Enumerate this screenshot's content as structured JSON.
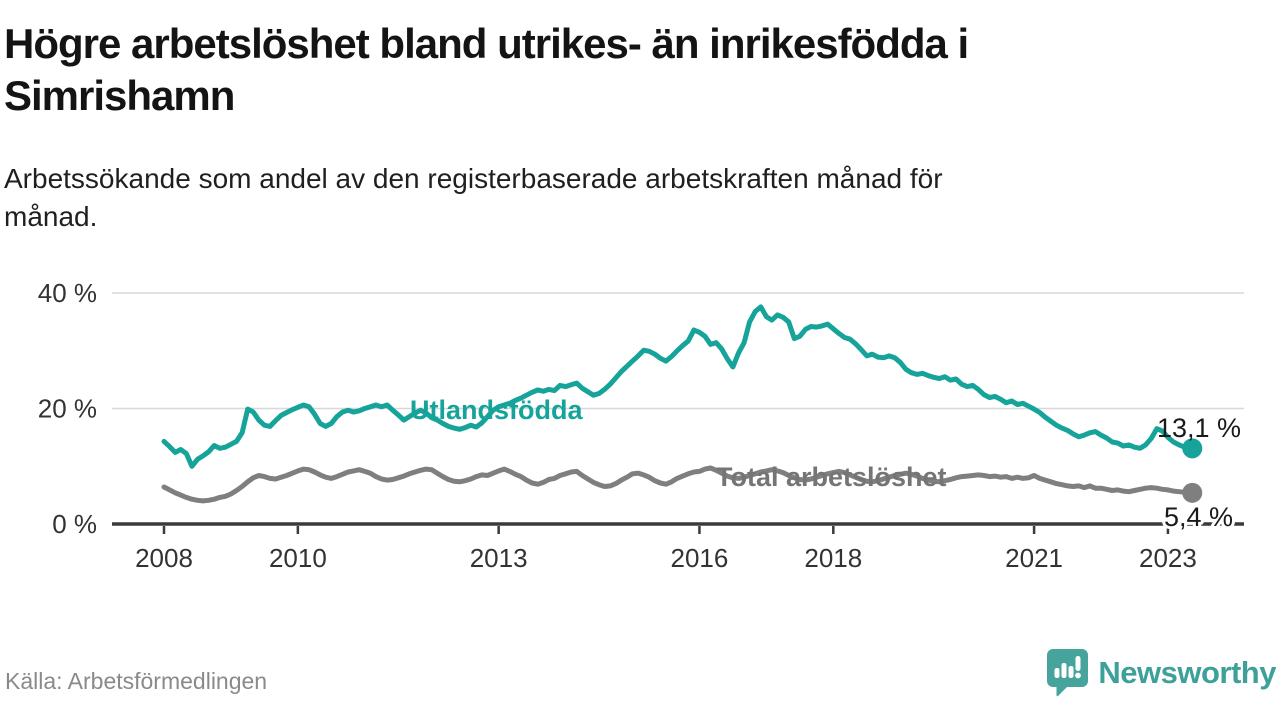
{
  "header": {
    "title_line1": "Högre arbetslöshet bland utrikes- än inrikesfödda i",
    "title_line2": "Simrishamn",
    "subtitle_line1": "Arbetssökande som andel av den registerbaserade arbetskraften månad för",
    "subtitle_line2": "månad."
  },
  "footer": {
    "source": "Källa: Arbetsförmedlingen",
    "brand": "Newsworthy",
    "brand_icon": "newsworthy-speech-bubble-bar-chart-icon",
    "brand_color": "#46a49d"
  },
  "chart_data": {
    "type": "line",
    "title": "Högre arbetslöshet bland utrikes- än inrikesfödda i Simrishamn",
    "subtitle": "Arbetssökande som andel av den registerbaserade arbetskraften månad för månad.",
    "source": "Källa: Arbetsförmedlingen",
    "unit": "%",
    "grid": "horizontal",
    "legend_position": "inline",
    "x_start_year": 2008,
    "x_step_months": 1,
    "x_axis": {
      "tick_years": [
        2008,
        2010,
        2013,
        2016,
        2018,
        2021,
        2023
      ]
    },
    "y_axis": {
      "ticks": [
        0,
        20,
        40
      ],
      "tick_labels": [
        "0 %",
        "20 %",
        "40 %"
      ],
      "range": [
        0,
        43
      ]
    },
    "colors": {
      "axis": "#3a3a3a",
      "grid": "#d8d8d8",
      "text": "#333333"
    },
    "series": [
      {
        "name": "Utlandsfödda",
        "color": "#16a39a",
        "end_label": "13,1 %",
        "end_value": 13.1,
        "values": [
          14.3,
          13.4,
          12.4,
          12.9,
          12.2,
          10.0,
          11.2,
          11.8,
          12.5,
          13.6,
          13.1,
          13.3,
          13.8,
          14.3,
          15.8,
          19.9,
          19.4,
          18.0,
          17.1,
          16.9,
          17.9,
          18.8,
          19.3,
          19.8,
          20.2,
          20.6,
          20.3,
          19.0,
          17.4,
          16.9,
          17.4,
          18.6,
          19.4,
          19.7,
          19.4,
          19.6,
          20.0,
          20.3,
          20.6,
          20.3,
          20.6,
          19.7,
          18.9,
          18.0,
          18.6,
          19.2,
          19.7,
          19.2,
          18.4,
          18.0,
          17.4,
          16.9,
          16.6,
          16.4,
          16.7,
          17.1,
          16.8,
          17.5,
          18.6,
          19.7,
          20.3,
          20.6,
          20.9,
          21.4,
          21.8,
          22.3,
          22.8,
          23.2,
          23.0,
          23.3,
          23.1,
          24.0,
          23.8,
          24.1,
          24.4,
          23.5,
          22.9,
          22.3,
          22.6,
          23.3,
          24.2,
          25.3,
          26.4,
          27.3,
          28.2,
          29.1,
          30.1,
          29.9,
          29.4,
          28.7,
          28.2,
          29.0,
          30.0,
          30.9,
          31.7,
          33.6,
          33.2,
          32.5,
          31.1,
          31.4,
          30.3,
          28.6,
          27.2,
          29.6,
          31.4,
          35.0,
          36.8,
          37.6,
          35.9,
          35.3,
          36.2,
          35.8,
          35.0,
          32.1,
          32.5,
          33.7,
          34.2,
          34.1,
          34.3,
          34.6,
          33.8,
          33.0,
          32.3,
          32.0,
          31.2,
          30.2,
          29.1,
          29.4,
          28.9,
          28.8,
          29.1,
          28.8,
          28.0,
          26.8,
          26.2,
          25.9,
          26.1,
          25.7,
          25.4,
          25.2,
          25.5,
          24.9,
          25.1,
          24.2,
          23.8,
          24.0,
          23.3,
          22.4,
          21.9,
          22.1,
          21.6,
          21.0,
          21.3,
          20.7,
          20.9,
          20.4,
          19.9,
          19.3,
          18.5,
          17.8,
          17.1,
          16.6,
          16.2,
          15.6,
          15.1,
          15.4,
          15.8,
          16.0,
          15.4,
          14.9,
          14.2,
          14.0,
          13.5,
          13.7,
          13.3,
          13.1,
          13.7,
          14.8,
          16.5,
          16.1,
          15.0,
          14.2,
          13.7,
          13.3,
          13.1
        ]
      },
      {
        "name": "Total arbetslöshet",
        "color": "#7f7f7f",
        "end_label": "5,4 %",
        "end_value": 5.4,
        "values": [
          6.4,
          5.9,
          5.4,
          5.0,
          4.6,
          4.3,
          4.1,
          4.0,
          4.1,
          4.3,
          4.6,
          4.8,
          5.2,
          5.8,
          6.5,
          7.3,
          8.0,
          8.4,
          8.2,
          7.9,
          7.8,
          8.1,
          8.4,
          8.8,
          9.2,
          9.5,
          9.4,
          9.0,
          8.5,
          8.1,
          7.9,
          8.2,
          8.6,
          9.0,
          9.2,
          9.4,
          9.1,
          8.8,
          8.2,
          7.8,
          7.6,
          7.7,
          8.0,
          8.3,
          8.7,
          9.0,
          9.3,
          9.5,
          9.4,
          8.8,
          8.2,
          7.7,
          7.4,
          7.3,
          7.5,
          7.8,
          8.2,
          8.5,
          8.4,
          8.8,
          9.2,
          9.5,
          9.1,
          8.6,
          8.2,
          7.6,
          7.1,
          6.9,
          7.2,
          7.7,
          7.9,
          8.4,
          8.7,
          9.0,
          9.1,
          8.4,
          7.8,
          7.2,
          6.8,
          6.5,
          6.6,
          7.0,
          7.6,
          8.1,
          8.7,
          8.8,
          8.5,
          8.1,
          7.5,
          7.1,
          6.9,
          7.3,
          7.9,
          8.3,
          8.7,
          9.0,
          9.1,
          9.5,
          9.7,
          9.3,
          8.8,
          8.3,
          8.0,
          7.9,
          8.1,
          8.4,
          8.7,
          9.0,
          9.2,
          9.4,
          9.2,
          8.9,
          8.4,
          8.0,
          7.7,
          7.6,
          7.8,
          8.1,
          8.4,
          8.7,
          8.9,
          9.1,
          8.9,
          8.5,
          8.1,
          7.7,
          7.4,
          7.3,
          7.5,
          7.8,
          8.1,
          8.4,
          8.6,
          8.8,
          8.6,
          8.3,
          7.9,
          7.6,
          7.4,
          7.3,
          7.5,
          7.7,
          8.0,
          8.2,
          8.3,
          8.4,
          8.5,
          8.4,
          8.2,
          8.3,
          8.1,
          8.2,
          7.9,
          8.1,
          7.9,
          8.0,
          8.4,
          7.9,
          7.6,
          7.3,
          7.0,
          6.8,
          6.6,
          6.5,
          6.6,
          6.3,
          6.6,
          6.2,
          6.2,
          6.0,
          5.8,
          5.9,
          5.7,
          5.6,
          5.8,
          6.0,
          6.2,
          6.3,
          6.2,
          6.0,
          5.9,
          5.7,
          5.6,
          5.5,
          5.4
        ]
      }
    ]
  }
}
